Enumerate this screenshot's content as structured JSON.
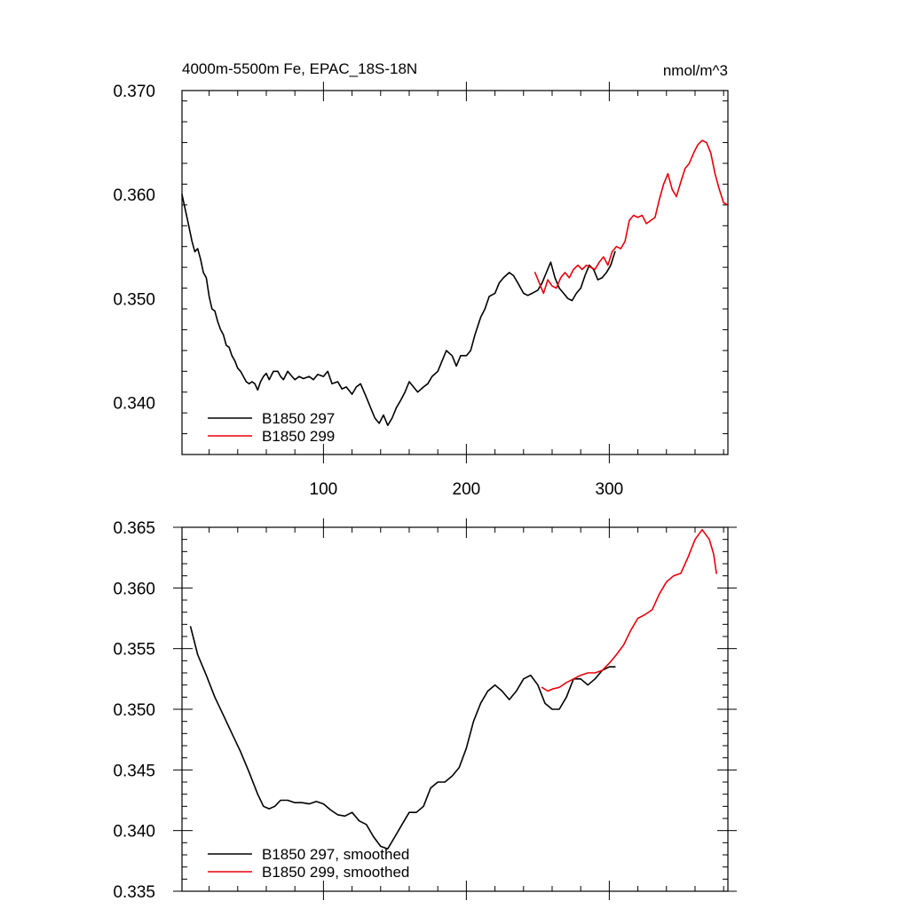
{
  "chart_data": [
    {
      "type": "line",
      "title": "4000m-5500m Fe, EPAC_18S-18N",
      "units": "nmol/m^3",
      "xlim": [
        1,
        383
      ],
      "ylim": [
        0.335,
        0.37
      ],
      "xticks": [
        100,
        200,
        300
      ],
      "yticks": [
        0.34,
        0.35,
        0.36,
        0.37
      ],
      "ytick_labels": [
        "0.340",
        "0.350",
        "0.360",
        "0.370"
      ],
      "legend_position": "bottom-left",
      "series": [
        {
          "name": "B1850 297",
          "color": "#000000",
          "x": [
            1,
            5,
            8,
            10,
            12,
            14,
            16,
            18,
            20,
            22,
            24,
            26,
            28,
            30,
            32,
            34,
            36,
            38,
            40,
            42,
            44,
            46,
            48,
            50,
            52,
            54,
            56,
            58,
            60,
            62,
            65,
            68,
            70,
            72,
            75,
            78,
            80,
            83,
            86,
            90,
            93,
            96,
            100,
            103,
            106,
            110,
            113,
            116,
            120,
            123,
            126,
            130,
            133,
            136,
            139,
            142,
            145,
            148,
            151,
            154,
            157,
            160,
            163,
            166,
            170,
            173,
            176,
            180,
            183,
            186,
            190,
            193,
            196,
            200,
            203,
            206,
            210,
            213,
            216,
            220,
            223,
            226,
            230,
            233,
            236,
            240,
            243,
            246,
            250,
            253,
            256,
            259,
            262,
            265,
            268,
            271,
            274,
            277,
            280,
            283,
            286,
            289,
            292,
            295,
            298,
            301,
            304
          ],
          "y": [
            0.36,
            0.3575,
            0.3555,
            0.3545,
            0.3548,
            0.3538,
            0.3525,
            0.352,
            0.3502,
            0.349,
            0.3488,
            0.3478,
            0.347,
            0.3465,
            0.3455,
            0.3453,
            0.3445,
            0.344,
            0.3433,
            0.343,
            0.3425,
            0.342,
            0.3418,
            0.342,
            0.3418,
            0.3412,
            0.342,
            0.3425,
            0.3428,
            0.3422,
            0.343,
            0.343,
            0.3425,
            0.3422,
            0.343,
            0.3425,
            0.3422,
            0.3425,
            0.3423,
            0.3425,
            0.3422,
            0.3427,
            0.3425,
            0.343,
            0.3418,
            0.342,
            0.3413,
            0.3415,
            0.3408,
            0.3415,
            0.3418,
            0.3405,
            0.3395,
            0.3385,
            0.338,
            0.3388,
            0.3378,
            0.3385,
            0.3395,
            0.3402,
            0.341,
            0.342,
            0.3415,
            0.341,
            0.3415,
            0.3418,
            0.3425,
            0.343,
            0.344,
            0.345,
            0.3445,
            0.3435,
            0.3445,
            0.3445,
            0.345,
            0.3465,
            0.3482,
            0.349,
            0.3502,
            0.3505,
            0.3515,
            0.352,
            0.3525,
            0.3522,
            0.3515,
            0.3505,
            0.3503,
            0.3505,
            0.3508,
            0.3515,
            0.3525,
            0.3535,
            0.352,
            0.351,
            0.3505,
            0.35,
            0.3498,
            0.3505,
            0.351,
            0.3522,
            0.3532,
            0.3528,
            0.3518,
            0.352,
            0.3525,
            0.3532,
            0.3545
          ]
        },
        {
          "name": "B1850 299",
          "color": "#e8000b",
          "x": [
            248,
            251,
            254,
            257,
            260,
            263,
            266,
            269,
            272,
            275,
            278,
            281,
            284,
            287,
            290,
            293,
            296,
            299,
            302,
            305,
            308,
            311,
            314,
            317,
            320,
            323,
            326,
            329,
            332,
            335,
            338,
            341,
            344,
            347,
            350,
            353,
            356,
            359,
            362,
            365,
            368,
            371,
            374,
            377,
            380,
            383
          ],
          "y": [
            0.3525,
            0.3515,
            0.3505,
            0.3518,
            0.3512,
            0.351,
            0.352,
            0.3525,
            0.352,
            0.3528,
            0.3532,
            0.3528,
            0.3532,
            0.353,
            0.3528,
            0.3535,
            0.354,
            0.3532,
            0.3545,
            0.355,
            0.3548,
            0.3555,
            0.3575,
            0.358,
            0.3578,
            0.358,
            0.3572,
            0.3575,
            0.3578,
            0.3595,
            0.361,
            0.362,
            0.3605,
            0.3598,
            0.3612,
            0.3625,
            0.363,
            0.364,
            0.3648,
            0.3652,
            0.365,
            0.364,
            0.362,
            0.3605,
            0.3592,
            0.359
          ]
        }
      ]
    },
    {
      "type": "line",
      "title": "",
      "xlim": [
        1,
        383
      ],
      "ylim": [
        0.335,
        0.365
      ],
      "yticks": [
        0.335,
        0.34,
        0.345,
        0.35,
        0.355,
        0.36,
        0.365
      ],
      "ytick_labels": [
        "0.335",
        "0.340",
        "0.345",
        "0.350",
        "0.355",
        "0.360",
        "0.365"
      ],
      "legend_position": "bottom-left",
      "series": [
        {
          "name": "B1850 297, smoothed",
          "color": "#000000",
          "x": [
            7,
            12,
            18,
            24,
            30,
            36,
            42,
            48,
            54,
            58,
            62,
            66,
            70,
            75,
            80,
            85,
            90,
            95,
            100,
            105,
            110,
            115,
            120,
            125,
            130,
            135,
            140,
            145,
            150,
            155,
            160,
            165,
            170,
            175,
            180,
            185,
            190,
            195,
            200,
            205,
            210,
            215,
            220,
            225,
            230,
            235,
            240,
            245,
            250,
            255,
            260,
            265,
            270,
            275,
            280,
            285,
            290,
            295,
            300,
            304
          ],
          "y": [
            0.3568,
            0.3545,
            0.3528,
            0.351,
            0.3495,
            0.348,
            0.3465,
            0.3448,
            0.343,
            0.342,
            0.3418,
            0.342,
            0.3425,
            0.3425,
            0.3423,
            0.3423,
            0.3422,
            0.3424,
            0.3422,
            0.3417,
            0.3413,
            0.3412,
            0.3415,
            0.3408,
            0.3405,
            0.3395,
            0.3387,
            0.3385,
            0.3395,
            0.3405,
            0.3415,
            0.3415,
            0.342,
            0.3435,
            0.344,
            0.344,
            0.3445,
            0.3452,
            0.3468,
            0.349,
            0.3505,
            0.3515,
            0.352,
            0.3515,
            0.3508,
            0.3515,
            0.3525,
            0.3528,
            0.352,
            0.3505,
            0.35,
            0.35,
            0.351,
            0.3525,
            0.3525,
            0.352,
            0.3525,
            0.3532,
            0.3535,
            0.3535
          ]
        },
        {
          "name": "B1850 299, smoothed",
          "color": "#e8000b",
          "x": [
            253,
            257,
            261,
            265,
            270,
            275,
            280,
            285,
            290,
            295,
            300,
            305,
            310,
            315,
            320,
            325,
            330,
            335,
            340,
            345,
            350,
            355,
            360,
            365,
            370,
            373,
            375
          ],
          "y": [
            0.3518,
            0.3515,
            0.3517,
            0.3518,
            0.3522,
            0.3525,
            0.3528,
            0.353,
            0.353,
            0.3532,
            0.3538,
            0.3545,
            0.3553,
            0.3565,
            0.3575,
            0.3578,
            0.3582,
            0.3595,
            0.3605,
            0.361,
            0.3612,
            0.3625,
            0.364,
            0.3648,
            0.364,
            0.3628,
            0.3612
          ]
        }
      ]
    }
  ]
}
